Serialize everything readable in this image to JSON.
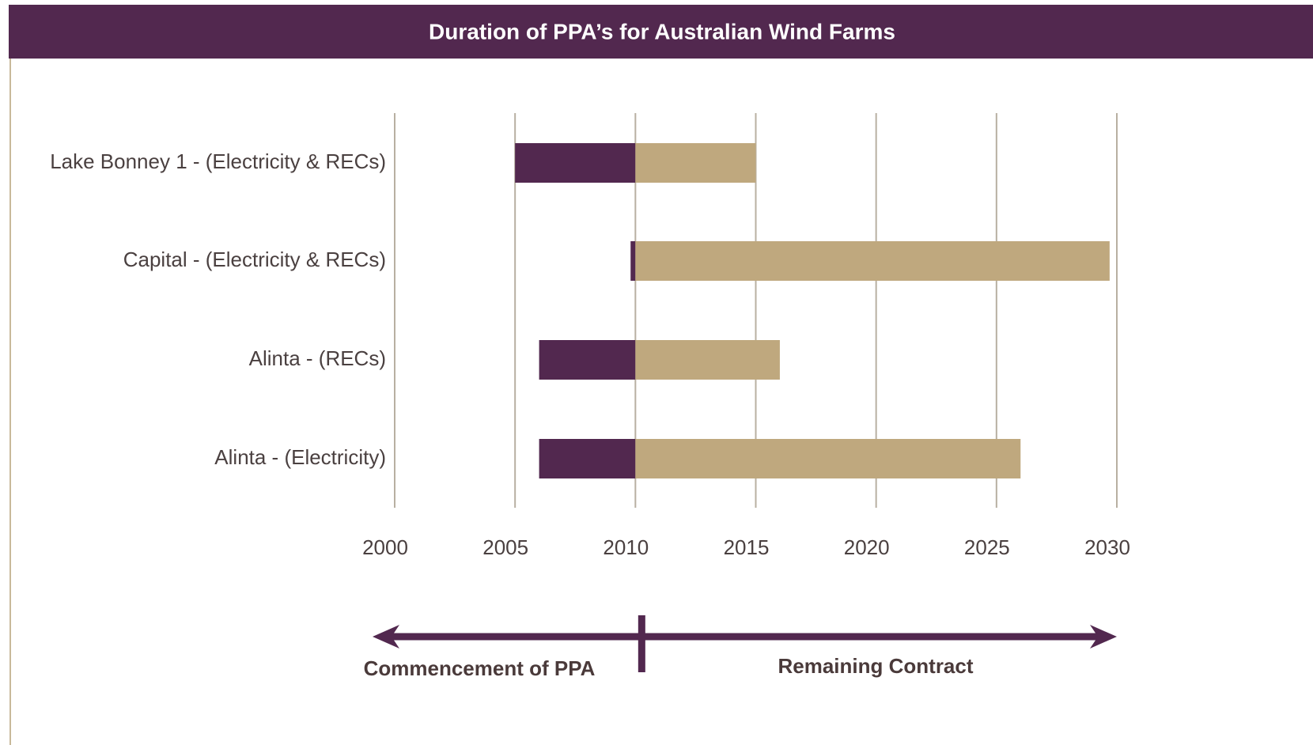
{
  "chart_data": {
    "type": "gantt",
    "title": "Duration of PPA’s for Australian Wind Farms",
    "categories": [
      "Lake Bonney 1 - (Electricity & RECs)",
      "Capital - (Electricity & RECs)",
      "Alinta - (RECs)",
      "Alinta - (Electricity)"
    ],
    "start": [
      2005,
      2009.8,
      2006,
      2006
    ],
    "end": [
      2015,
      2029.7,
      2016,
      2026
    ],
    "split": 2010,
    "commencement_color": "#52284f",
    "remaining_color": "#bfa87e",
    "xlim": [
      2000,
      2030
    ],
    "xticks": [
      2000,
      2005,
      2010,
      2015,
      2020,
      2025,
      2030
    ],
    "grid": true,
    "annotations": [
      "Commencement of PPA",
      "Remaining Contract"
    ]
  }
}
